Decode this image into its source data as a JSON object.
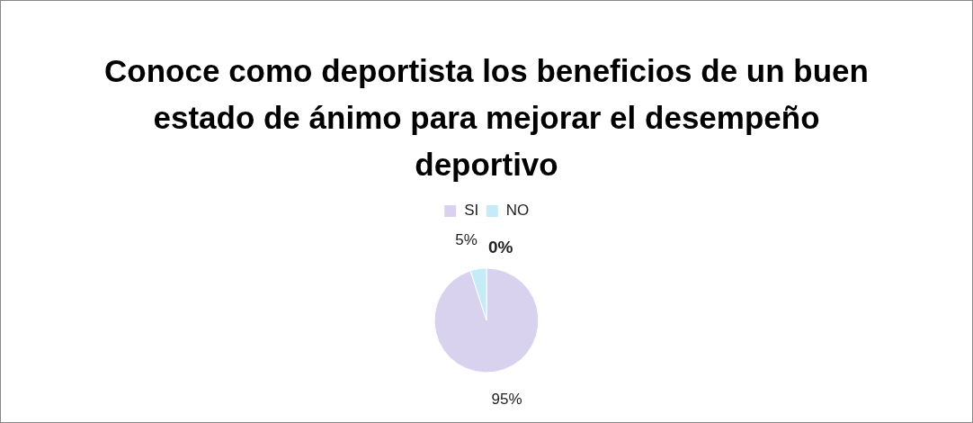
{
  "chart_data": {
    "type": "pie",
    "title": "Conoce como deportista los beneficios de un buen estado de ánimo para mejorar el desempeño deportivo",
    "categories": [
      "SI",
      "NO"
    ],
    "values": [
      95,
      5
    ],
    "value_labels": [
      "95%",
      "5%"
    ],
    "colors": [
      "#d8d2ee",
      "#c4ecf6"
    ],
    "legend": "top",
    "annotations": [
      "0%"
    ]
  }
}
